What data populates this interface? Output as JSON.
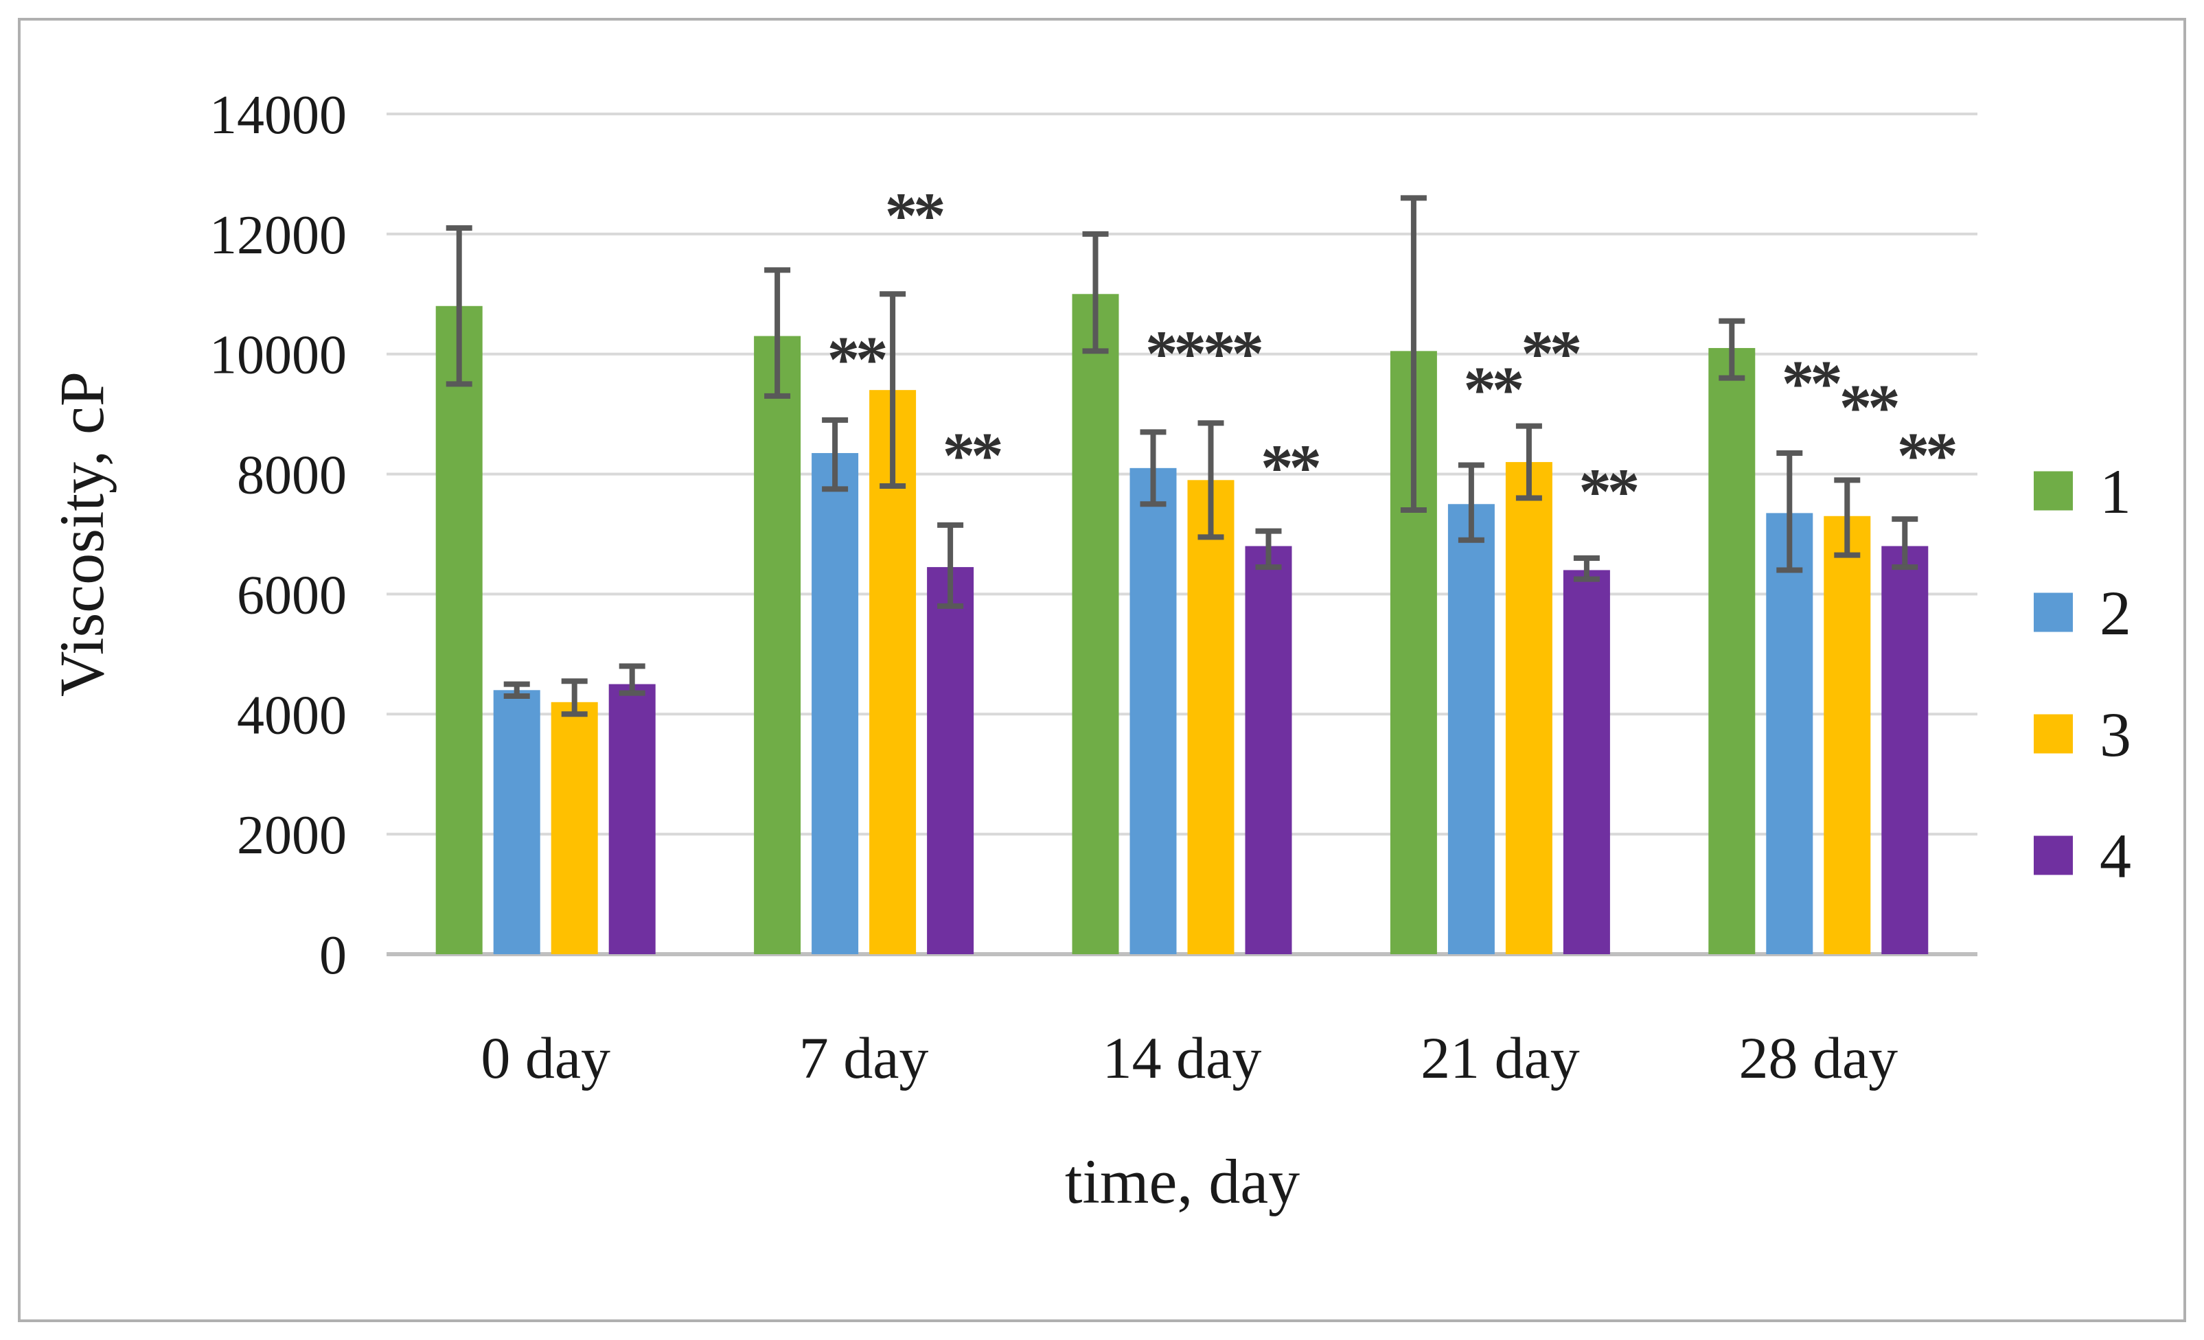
{
  "page": {
    "background": "#ffffff",
    "border_color": "#b0b0b0"
  },
  "chart_data": {
    "type": "bar",
    "title": "",
    "ylabel": "Viscosity, cP",
    "xlabel": "time, day",
    "ylim": [
      0,
      14000
    ],
    "yticks": [
      0,
      2000,
      4000,
      6000,
      8000,
      10000,
      12000,
      14000
    ],
    "grid": "horizontal-only",
    "gridline_color": "#d9d9d9",
    "axis_line_color": "#bfbfbf",
    "error_bar_color": "#595959",
    "legend_position": "right",
    "categories": [
      "0 day",
      "7 day",
      "14 day",
      "21 day",
      "28 day"
    ],
    "series": [
      {
        "name": "1",
        "color": "#70ad47",
        "values": [
          10800,
          10300,
          11000,
          10050,
          10100
        ],
        "error_low": [
          9500,
          9300,
          10050,
          7400,
          9600
        ],
        "error_high": [
          12100,
          11400,
          12000,
          12600,
          10550
        ]
      },
      {
        "name": "2",
        "color": "#5b9bd5",
        "values": [
          4400,
          8350,
          8100,
          7500,
          7350
        ],
        "error_low": [
          4300,
          7750,
          7500,
          6900,
          6400
        ],
        "error_high": [
          4500,
          8900,
          8700,
          8150,
          8350
        ]
      },
      {
        "name": "3",
        "color": "#ffc000",
        "values": [
          4200,
          9400,
          7900,
          8200,
          7300
        ],
        "error_low": [
          4000,
          7800,
          6950,
          7600,
          6650
        ],
        "error_high": [
          4550,
          11000,
          8850,
          8800,
          7900
        ]
      },
      {
        "name": "4",
        "color": "#7030a0",
        "values": [
          4500,
          6450,
          6800,
          6400,
          6800
        ],
        "error_low": [
          4350,
          5800,
          6450,
          6250,
          6450
        ],
        "error_high": [
          4800,
          7150,
          7050,
          6600,
          7250
        ]
      }
    ],
    "annotations": [
      {
        "text": "**",
        "category": 1,
        "series": 1,
        "y": 10000
      },
      {
        "text": "**",
        "category": 1,
        "series": 2,
        "y": 12400
      },
      {
        "text": "**",
        "category": 1,
        "series": 3,
        "y": 8400
      },
      {
        "text": "**",
        "category": 2,
        "series": 1,
        "y": 10100
      },
      {
        "text": "**",
        "category": 2,
        "series": 2,
        "y": 10100
      },
      {
        "text": "**",
        "category": 2,
        "series": 3,
        "y": 8200
      },
      {
        "text": "**",
        "category": 3,
        "series": 1,
        "y": 9500
      },
      {
        "text": "**",
        "category": 3,
        "series": 2,
        "y": 10100
      },
      {
        "text": "**",
        "category": 3,
        "series": 3,
        "y": 7800
      },
      {
        "text": "**",
        "category": 4,
        "series": 1,
        "y": 9600
      },
      {
        "text": "**",
        "category": 4,
        "series": 2,
        "y": 9200
      },
      {
        "text": "**",
        "category": 4,
        "series": 3,
        "y": 8400
      }
    ]
  }
}
